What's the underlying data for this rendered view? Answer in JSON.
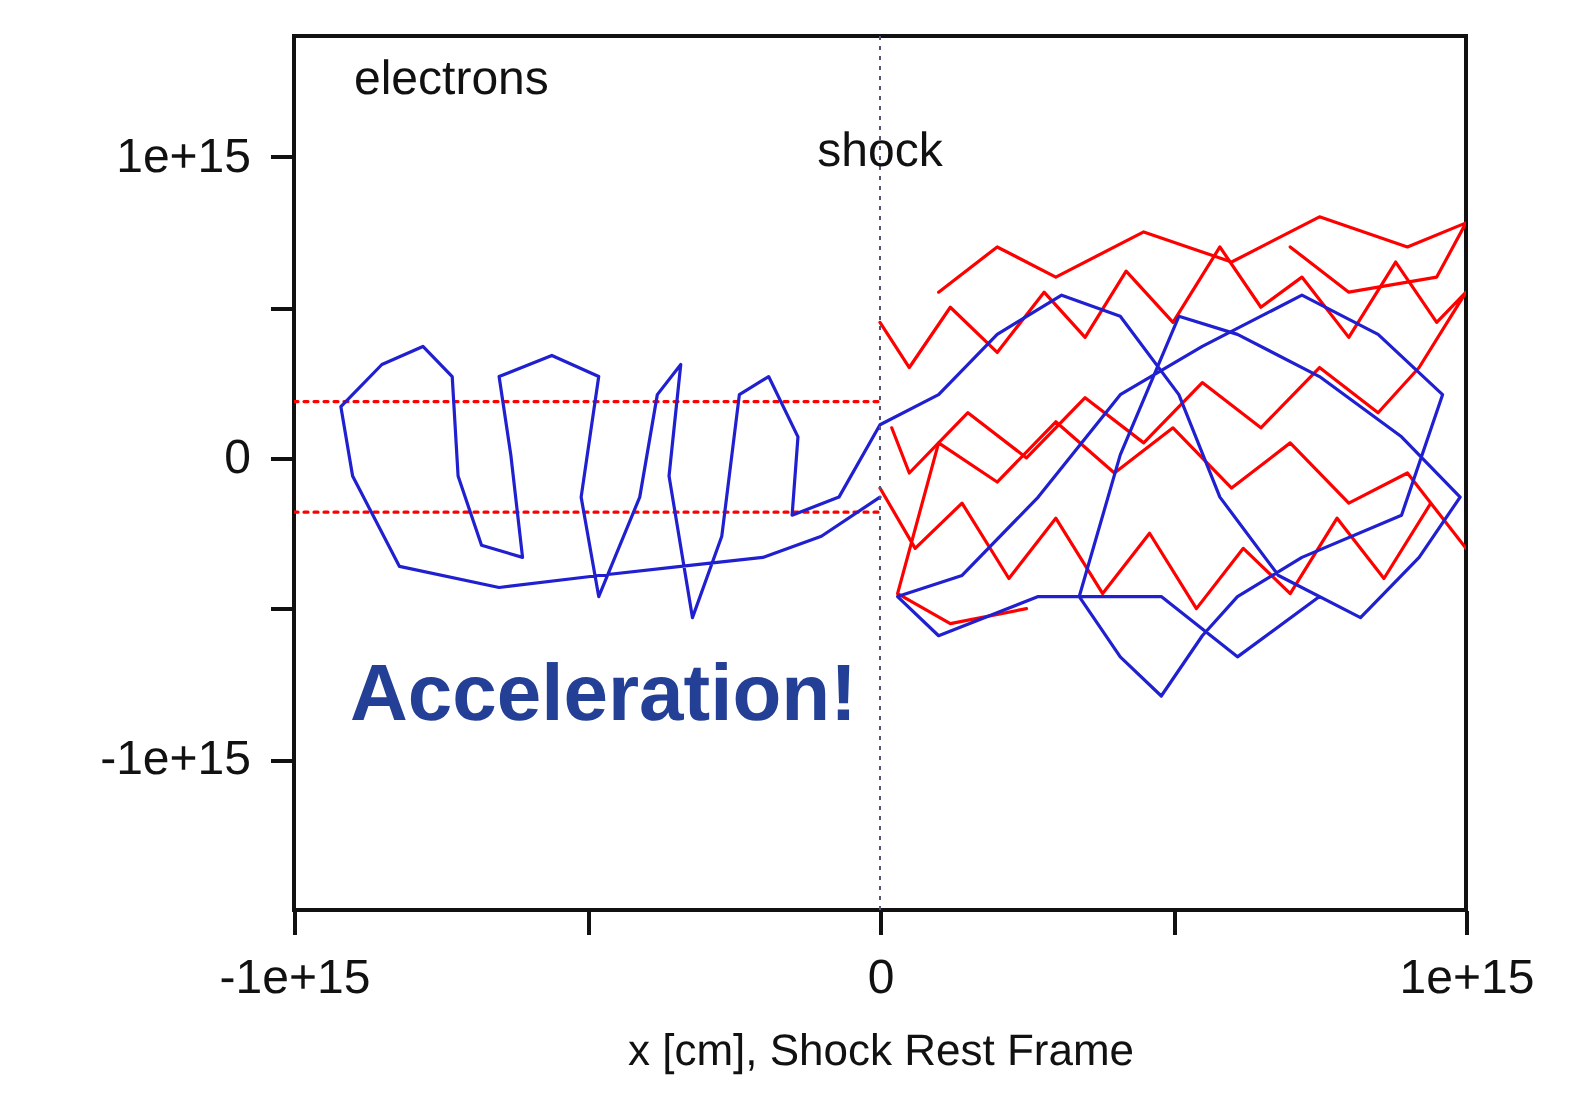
{
  "chart_data": {
    "type": "line",
    "xlabel": "x [cm], Shock Rest Frame",
    "annotations": [
      "electrons",
      "Acceleration!"
    ],
    "xlim": [
      -1000000000000000.0,
      1000000000000000.0
    ],
    "ylim": [
      -1500000000000000.0,
      1400000000000000.0
    ],
    "xticks": [
      {
        "value": -1000000000000000.0,
        "label": "-1e+15"
      },
      {
        "value": -500000000000000.0,
        "label": null
      },
      0,
      {
        "value": 500000000000000.0,
        "label": null
      },
      {
        "value": 1000000000000000.0,
        "label": "1e+15"
      }
    ],
    "yticks": [
      {
        "value": -1000000000000000.0,
        "label": "-1e+15"
      },
      {
        "value": -500000000000000.0,
        "label": null
      },
      0,
      {
        "value": 500000000000000.0,
        "label": null
      },
      {
        "value": 1000000000000000.0,
        "label": "1e+15"
      }
    ],
    "grid": false,
    "ref_lines": [
      {
        "axis": "x",
        "value": 0,
        "label": "shock",
        "color": "#555577",
        "line_style": "dotted"
      }
    ],
    "series": [
      {
        "color": "#ff0000",
        "line_style": "dotted",
        "x": [
          -1000000000000000.0,
          0
        ],
        "values": [
          187000000000000.0,
          187000000000000.0
        ]
      },
      {
        "color": "#ff0000",
        "line_style": "dotted",
        "x": [
          -1000000000000000.0,
          0
        ],
        "values": [
          -180000000000000.0,
          -180000000000000.0
        ]
      },
      {
        "color": "#ff0000",
        "line_style": "solid",
        "x": [
          0,
          50000000000000.0,
          120000000000000.0,
          200000000000000.0,
          280000000000000.0,
          350000000000000.0,
          420000000000000.0,
          500000000000000.0,
          580000000000000.0,
          650000000000000.0,
          720000000000000.0,
          800000000000000.0,
          880000000000000.0,
          950000000000000.0,
          1000000000000000.0,
          920000000000000.0,
          850000000000000.0,
          750000000000000.0,
          650000000000000.0,
          550000000000000.0,
          450000000000000.0,
          350000000000000.0,
          250000000000000.0,
          150000000000000.0,
          50000000000000.0,
          20000000000000.0
        ],
        "values": [
          450000000000000.0,
          300000000000000.0,
          500000000000000.0,
          350000000000000.0,
          550000000000000.0,
          400000000000000.0,
          620000000000000.0,
          450000000000000.0,
          700000000000000.0,
          500000000000000.0,
          600000000000000.0,
          400000000000000.0,
          650000000000000.0,
          450000000000000.0,
          550000000000000.0,
          300000000000000.0,
          150000000000000.0,
          300000000000000.0,
          100000000000000.0,
          250000000000000.0,
          50000000000000.0,
          200000000000000.0,
          0.0,
          150000000000000.0,
          -50000000000000.0,
          100000000000000.0
        ]
      },
      {
        "color": "#ff0000",
        "line_style": "solid",
        "x": [
          0,
          60000000000000.0,
          140000000000000.0,
          220000000000000.0,
          300000000000000.0,
          380000000000000.0,
          460000000000000.0,
          540000000000000.0,
          620000000000000.0,
          700000000000000.0,
          780000000000000.0,
          860000000000000.0,
          940000000000000.0,
          1000000000000000.0,
          900000000000000.0,
          800000000000000.0,
          700000000000000.0,
          600000000000000.0,
          500000000000000.0,
          400000000000000.0,
          300000000000000.0,
          200000000000000.0,
          100000000000000.0,
          30000000000000.0,
          120000000000000.0,
          250000000000000.0
        ],
        "values": [
          -100000000000000.0,
          -300000000000000.0,
          -150000000000000.0,
          -400000000000000.0,
          -200000000000000.0,
          -450000000000000.0,
          -250000000000000.0,
          -500000000000000.0,
          -300000000000000.0,
          -450000000000000.0,
          -200000000000000.0,
          -400000000000000.0,
          -150000000000000.0,
          -300000000000000.0,
          -50000000000000.0,
          -150000000000000.0,
          50000000000000.0,
          -100000000000000.0,
          100000000000000.0,
          -50000000000000.0,
          120000000000000.0,
          -80000000000000.0,
          50000000000000.0,
          -450000000000000.0,
          -550000000000000.0,
          -500000000000000.0
        ]
      },
      {
        "color": "#ff0000",
        "line_style": "solid",
        "x": [
          100000000000000.0,
          200000000000000.0,
          300000000000000.0,
          450000000000000.0,
          600000000000000.0,
          750000000000000.0,
          900000000000000.0,
          1000000000000000.0,
          950000000000000.0,
          800000000000000.0,
          700000000000000.0
        ],
        "values": [
          550000000000000.0,
          700000000000000.0,
          600000000000000.0,
          750000000000000.0,
          650000000000000.0,
          800000000000000.0,
          700000000000000.0,
          780000000000000.0,
          600000000000000.0,
          550000000000000.0,
          700000000000000.0
        ]
      },
      {
        "color": "#2020d0",
        "line_style": "solid",
        "x": [
          0,
          -100000000000000.0,
          -200000000000000.0,
          -340000000000000.0,
          -480000000000000.0,
          -650000000000000.0,
          -820000000000000.0,
          -900000000000000.0,
          -920000000000000.0,
          -850000000000000.0,
          -780000000000000.0,
          -730000000000000.0,
          -720000000000000.0,
          -680000000000000.0,
          -610000000000000.0,
          -630000000000000.0,
          -650000000000000.0,
          -560000000000000.0,
          -480000000000000.0,
          -510000000000000.0,
          -480000000000000.0,
          -410000000000000.0,
          -380000000000000.0,
          -340000000000000.0,
          -360000000000000.0,
          -320000000000000.0,
          -270000000000000.0,
          -240000000000000.0,
          -190000000000000.0,
          -140000000000000.0,
          -150000000000000.0,
          -70000000000000.0,
          0,
          100000000000000.0,
          200000000000000.0,
          310000000000000.0,
          410000000000000.0,
          510000000000000.0,
          580000000000000.0,
          680000000000000.0,
          820000000000000.0,
          920000000000000.0,
          990000000000000.0,
          890000000000000.0,
          750000000000000.0,
          610000000000000.0,
          510000000000000.0,
          410000000000000.0,
          340000000000000.0,
          410000000000000.0,
          480000000000000.0,
          550000000000000.0,
          610000000000000.0,
          720000000000000.0,
          890000000000000.0,
          960000000000000.0,
          850000000000000.0,
          720000000000000.0,
          550000000000000.0,
          410000000000000.0,
          270000000000000.0,
          140000000000000.0,
          30000000000000.0,
          100000000000000.0,
          270000000000000.0,
          480000000000000.0,
          610000000000000.0,
          750000000000000.0
        ],
        "values": [
          -130000000000000.0,
          -260000000000000.0,
          -330000000000000.0,
          -360000000000000.0,
          -390000000000000.0,
          -430000000000000.0,
          -360000000000000.0,
          -60000000000000.0,
          170000000000000.0,
          310000000000000.0,
          370000000000000.0,
          270000000000000.0,
          -60000000000000.0,
          -290000000000000.0,
          -330000000000000.0,
          10000000000000.0,
          270000000000000.0,
          340000000000000.0,
          270000000000000.0,
          -130000000000000.0,
          -460000000000000.0,
          -130000000000000.0,
          210000000000000.0,
          310000000000000.0,
          -60000000000000.0,
          -530000000000000.0,
          -260000000000000.0,
          210000000000000.0,
          270000000000000.0,
          70000000000000.0,
          -190000000000000.0,
          -130000000000000.0,
          110000000000000.0,
          210000000000000.0,
          410000000000000.0,
          540000000000000.0,
          470000000000000.0,
          210000000000000.0,
          -130000000000000.0,
          -390000000000000.0,
          -530000000000000.0,
          -330000000000000.0,
          -130000000000000.0,
          70000000000000.0,
          270000000000000.0,
          410000000000000.0,
          470000000000000.0,
          10000000000000.0,
          -460000000000000.0,
          -660000000000000.0,
          -790000000000000.0,
          -590000000000000.0,
          -460000000000000.0,
          -330000000000000.0,
          -190000000000000.0,
          210000000000000.0,
          410000000000000.0,
          540000000000000.0,
          370000000000000.0,
          210000000000000.0,
          -130000000000000.0,
          -390000000000000.0,
          -460000000000000.0,
          -590000000000000.0,
          -460000000000000.0,
          -460000000000000.0,
          -660000000000000.0,
          -460000000000000.0
        ]
      }
    ]
  }
}
